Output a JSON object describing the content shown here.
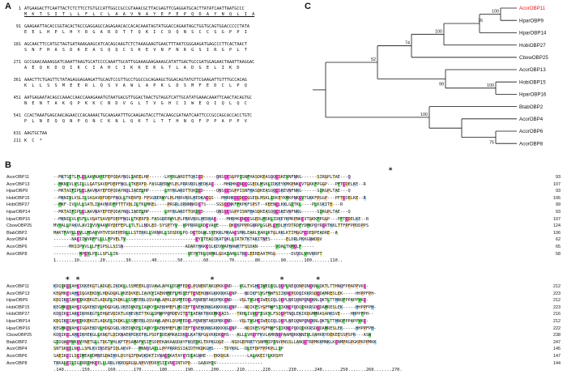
{
  "panels": {
    "a": "A",
    "b": "B",
    "c": "C"
  },
  "nucleotide": [
    {
      "num": "1",
      "nt": "ATGAAGACTTCAATTACTCTCTTCCTGTGCCATTGGCCGCCGTAAACGCTTACGAGTTCGAGGATGCACTTATATCAATTAATGCCC",
      "aa": "M  K  T  S  I  T  L  L  F  L  C  L  A  A  V  N  A  Y  E  F  E  P  Q  D  A  Y  N  Q  L  I  A",
      "uline": true
    },
    {
      "num": "91",
      "nt": "GAAGAATTACACCGGTACACTACCGAGGAGCCAGAGAACACCACACAAATAGTATGGACCAGAATAGCTGGTGCAGTGGACCCCCTATA",
      "aa": "E  E  L  H  P  L  H  Y  R  G  A  R  D  T  T  Q  K  I  C  D  Q  N  S  C  C  S  G  P  P  I",
      "uline": false
    },
    {
      "num": "181",
      "nt": "AGCAACTTCCATGCTAGTGATAAAGAAGCATCACAGCAAGTCTCTAAAGAAGTGAACTTTAATCGGGAAGATGAGCCCTTCACTAACT",
      "aa": "S  N  F  H  A  S  D  K  E  A  S  Q  Q  C  S  K  E  V  N  F  N  R  G  S  I  R  G  P  L  T",
      "uline": false
    },
    {
      "num": "271",
      "nt": "GCCGAACAAAAGGATCAAATTAAGTGCATCCCCAAATTGCATTGGAAAGAAGAAAGCATATTGACTGCCGATGGAGAACTAAATTAAGGAC",
      "aa": "A  E  Q  K  D  Q  I  K  C  I  A  H  C  I  K  K  E  K  G  T  L  A  D  G  E  L  I  K  D",
      "uline": false
    },
    {
      "num": "361",
      "nt": "AAACTTCTGAGTTCTATAGAGGAGAAGATTGCAGTCCGTTGCCTGGCCGCAGAAGCTGGACAGTATGTTCGAAGATTGTTTGCCACAG",
      "aa": "K  L  L  S  S  M  E  E  R  L  Q  S  V  A  W  L  A  P  K  L  D  S  M  F  E  D  C  L  P  Q",
      "uline": false
    },
    {
      "num": "451",
      "nt": "AATGAGAATACAGCCAAACCAACCAAAGAAATGTAATGACGTTGGACTAACTGTAGGTCATTGCATATGAAACAAATTCAACTACAGTGC",
      "aa": "N  E  N  T  A  K  Q  P  K  K  C  N  D  V  G  L  T  V  G  H  C  I  W  E  Q  I  Q  L  Q  C",
      "uline": false
    },
    {
      "num": "541",
      "nt": "CCACTAAATGAGCAACAGAACCCACAAAACTGCAAGAATTTGCAAGAGTACCTTACAAGCGATAATCAATTCCCGCCAGCACCACCTGTC",
      "aa": "P  L  N  E  Q  Q  N  P  Q  N  C  K  N  L  Q  K  T  L  T  T  H  N  Q  F  P  P  A  P  P  V",
      "uline": false
    },
    {
      "num": "631",
      "nt": "AAGTGCTAA",
      "aa": "",
      "uline": false
    },
    {
      "num": "211",
      "nt": "",
      "aa": "K  C  *",
      "uline": false
    }
  ],
  "tree": {
    "leaves": [
      {
        "name": "AcorOBP11",
        "color": "#e31a1c"
      },
      {
        "name": "HparOBP9",
        "color": "#111111"
      },
      {
        "name": "HparOBP14",
        "color": "#111111"
      },
      {
        "name": "HobiOBP27",
        "color": "#111111"
      },
      {
        "name": "CbowOBP25",
        "color": "#111111"
      },
      {
        "name": "AcorOBP13",
        "color": "#111111"
      },
      {
        "name": "HobiOBP15",
        "color": "#111111"
      },
      {
        "name": "HparOBP16",
        "color": "#111111"
      },
      {
        "name": "BtabOBP2",
        "color": "#111111"
      },
      {
        "name": "AcorOBP4",
        "color": "#111111"
      },
      {
        "name": "AcorOBP6",
        "color": "#111111"
      },
      {
        "name": "AcorOBP8",
        "color": "#111111"
      }
    ],
    "bootstrap": [
      "100",
      "76",
      "100",
      "74",
      "52",
      "99",
      "100",
      "100",
      "75"
    ]
  },
  "alignment": {
    "block1": [
      {
        "name": "AcorOBP11",
        "seq": "--MKTSITLFLCLAAVNAYEFEPQDAYNQLIAEELHP------LHYRGARDTTQKICD-----QNSCCSGPPISNFHASDKEASQQCSKEVNFNRG------SIRGPLTAE---Q",
        "n": "93"
      },
      {
        "name": "AcorOBP13",
        "seq": "--MKNIVLVSILLLGATSAVDFDEPFNQLLTKERFD-FASGRERWYLPLPRRVRDLHEDKAC----MHRHKCNCCGGEDLMSKLIDKEYKMKPNKCVTGKKFPGGP---PFTCDELKE--R",
        "n": "107"
      },
      {
        "name": "HparOBP9",
        "seq": "--MKTAIFIPLCLAAVNAYEFEPQDAYNQLIAEELHP------LHYRGARDTTQKICD-----QNSCCSGPPISNFHASDKEASQQCSKEVNFNRG------SIRGPLTAE---Q",
        "n": "93"
      },
      {
        "name": "HobiOBP15",
        "seq": "--MKNIVLVSLILSASAVDFDEPFNQLLTKERFD-FPSGRERWYLPLPRRVRDLHEDKACGS---MHRHKCCDCCGGEDLMSKLIDKEYKMKPNKCVTGKKFPGGP---PFTCDELKE--R",
        "n": "106"
      },
      {
        "name": "HobiOBP27",
        "seq": "--MKF-IVLVLLSATLIVAVNVDFPTTTVDLILTKLMKEL----PRGRLQRNNNKDCTS----SGSCCNKFFKPKFSPST--KEENCLKKLGITKL----PLKSKITE---R",
        "n": "99"
      },
      {
        "name": "HparOBP14",
        "seq": "--MKTAIFIPLCLAAVNAYEFEPQDAYNQLIAEELHP------LHYRGARDTTQKICD-----QNSCCSGPPISNFHASDKEASQQCSKEVNFNRG------SIRGPLTAE---Q",
        "n": "93"
      },
      {
        "name": "HparOBP16",
        "seq": "--MKNILVLVSFLLVGATSAVDFDEPFNQLLTKERFD-FASGRERWYLPLPRRVRDLHEDKAC----MHRHKCNCCGGEDLMSKLIDKEYKMKPNKCVTGKKFPGGP---PFTCDELKE--R",
        "n": "107"
      },
      {
        "name": "CbowOBP25",
        "seq": "MVYALLPAKVLAVIIVVVAAVRYDEFEPLLTLTLLNDLED-SYSPTYV--VPPRRRLRDCVAVE----DKCKPPPRGNRPLGGPLCYDLHYDTRDFYDMKPQYRCRTKKLTTFPFPPDDPPS",
        "n": "124"
      },
      {
        "name": "BtabOBP2",
        "seq": "MAKTFAYLLCVLLMSAVVHTVESKEPERLLLSTERKLLVRNRLLSDSDDLPQ-DCTDGWLSYEKRLMKAACSMRLEARLYARLKTGLRKLKTIMGGFCDEDPEADRE--A",
        "n": "106"
      },
      {
        "name": "AcorOBP4",
        "seq": "-------NACIIWVRFFLLLLFPVELTV---------------------------CYITEAQIKATQKLLIRTKTKTAKITNES------ELDRLPKKGNWDDV",
        "n": "62"
      },
      {
        "name": "AcorOBP6",
        "seq": "------MKSIPVVLLLFFSPSLLSISN------------------------ADARYHAKCQLKDVVAPHAWKTFSSDAN-------VQALTKMCLF-----",
        "n": "65"
      },
      {
        "name": "AcorOBP8",
        "seq": "----------MPCYLPILLSFLLIN---------------------------VEYVTKLQRMKLGDAIAHLGTRCLEEREAATMSG------DVQDLVHVRRPT",
        "n": "58"
      }
    ],
    "block2": [
      {
        "name": "AcorOBP11",
        "seq": "KDQIKCIAHCIKKEKGTLADGELIKDKLLSSMEERLQSVAWLAPKLDSMFEDCLPQNENTAKQPKKCND---VGLTVGHCIWEQIQLQCPLNEQQNPQNCKNLQKTLTTHNQFPPAPPVKC-",
        "n": "212"
      },
      {
        "name": "AcorOBP13",
        "seq": "KEGMKCVAHCIGGKEKDVLHDGDGKLVKEDVKELIAVKYIAEKHMEFLMDIEFTCNEHQNKGKKKKKGCNP---NDIKFSYGFMWFSIIKNCPQDQIKKRSDCDAMRESLEK-----HHPPFPH-",
        "n": "223"
      },
      {
        "name": "HparOBP9",
        "seq": "KDQIKCIAHCIKKEKGTLADGELIKDKLLSSMEERLQSVAWLAPKLDSMFEDCLPQNENTAKQPKKCND---VGLTVGHCIWEQIQLQCPLNEQQNPQNCKNLQKTLTTHNQFPPAPPVKC-",
        "n": "212"
      },
      {
        "name": "HobiOBP15",
        "seq": "KEGMKCVAHCIGGKEKDVLHDGDGKLVKEDVKELIAVKYIAEKHMEFLMDIEFTCNEHQNKGKKKKKGCNP---NDIKFSYGFMWFSIIKNCPQDQIKKRSDCDAMRESLEK-----HHPPFPH-",
        "n": "223"
      },
      {
        "name": "HobiOBP27",
        "seq": "KDQIKCIARCIKHKKGTLEHGEVDIKTLKHEVKETTKGLDMWPPQMDEVITCTIAERKTRKKMKCAIS---TRHLIVVCFIGKYLFSQCPTNQLEKIKDGMMRASAHKSVE----HHPPFPH--",
        "n": "216"
      },
      {
        "name": "HparOBP14",
        "seq": "KDQIKCIAHCIKKEKGTLADGELIKDKLLSSMEERLQSVAWLAPKLDSMFEDCLPQNENTAKQPKKCND---VGLTVGHCIWEQIQLQCPLNEQQNPQNCKNLQKTLTTHNQFPPAPPVKC-",
        "n": "212"
      },
      {
        "name": "HparOBP16",
        "seq": "KEGMKCVAHCIGGKEKDVLHDGDGKLVKEDVKELIAVKYIAEKHMEFLMDIEFTCNEHQNKGKKKKKGCNP---NDIKFSYGFMWFSIIKNCPQDQIKKRSDCDAMRESLEK-----HHPPFPH-",
        "n": "222"
      },
      {
        "name": "CbowOBP25",
        "seq": "KDQIKCLAHCIKHEKGLLKNGTLDIKNAEKMIKEFKLPSDFIDEAMKAIDKCLKATRPGGVKKDKCHS---ALLLVHCFFKVLAMKNCPAAMQKKNNEVLQAHKRYDEKEESSPSPR---ASW",
        "n": "238"
      },
      {
        "name": "BtabOBP2",
        "seq": "GIDQACMVKCVYNETGLLTDGTVHLKFTPSAMAFVSIFSDPEKAKAAQDAYFRQEIKLTRPKGQGE---NSDGEPRRTYSNMMIPINVPNSSLLANQCTRPMKKMNKLKCNMPRGPGKPKPPMKK",
        "n": "247"
      },
      {
        "name": "AcorOBP4",
        "seq": "SNTSKCILNCLLSMLKVINSEGFIDLAKVP---MNNQSAILLPPPRRRSSIAIDTHKDKGHS----TDYKRL--DLEFDPFPPKPLLIP",
        "n": "145"
      },
      {
        "name": "AcorOBP6",
        "seq": "SAEIKCILSCIMEAVDMNEGDWIHVLDSYGIFDWQKDKTIVNACIKATAYCYDIAGNHE---EKKDGR-------LALAKEIYLKRSHY",
        "n": "147"
      },
      {
        "name": "AcorOBP8",
        "seq": "TRKALCILIGIRRIHKCELLLRRLVKRDGRGGLNPVVPDRYSIIVNCINTVPD---GAAVHIV------------------",
        "n": "144"
      }
    ],
    "ruler1": "1.......10........20........30........40........50........60........70........80........90.......100.......110..",
    "ruler2": ".140.......150.......160.......170.......180.......190.......200.......210.......220.......230.......240.......250.......260.......270."
  }
}
